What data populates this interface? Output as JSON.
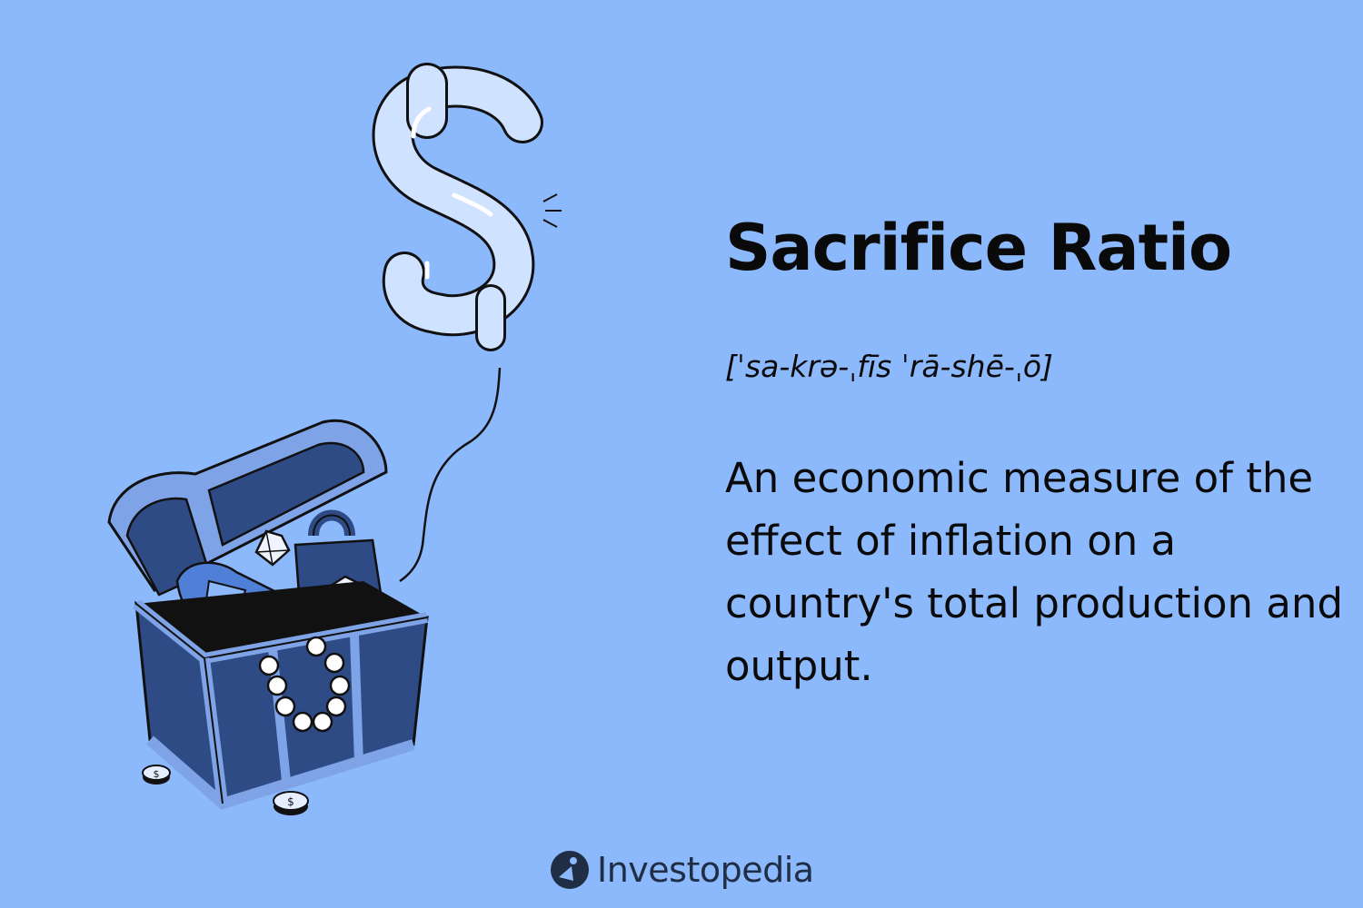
{
  "definition_card": {
    "term": "Sacrifice Ratio",
    "pronunciation": "[ˈsa-krə-ˌfīs ˈrā-shē-ˌō]",
    "definition": "An economic measure of the effect of inflation on a country's total production and output."
  },
  "brand": {
    "name": "Investopedia",
    "logo_icon": "investopedia-logo-icon"
  },
  "illustration": {
    "subject": "dollar-balloon-over-treasure-chest",
    "background_color": "#8cb8fc",
    "balloon_color": "#cfe2ff",
    "chest_color": "#2f4b86",
    "chest_trim_color": "#7ea3e6"
  }
}
